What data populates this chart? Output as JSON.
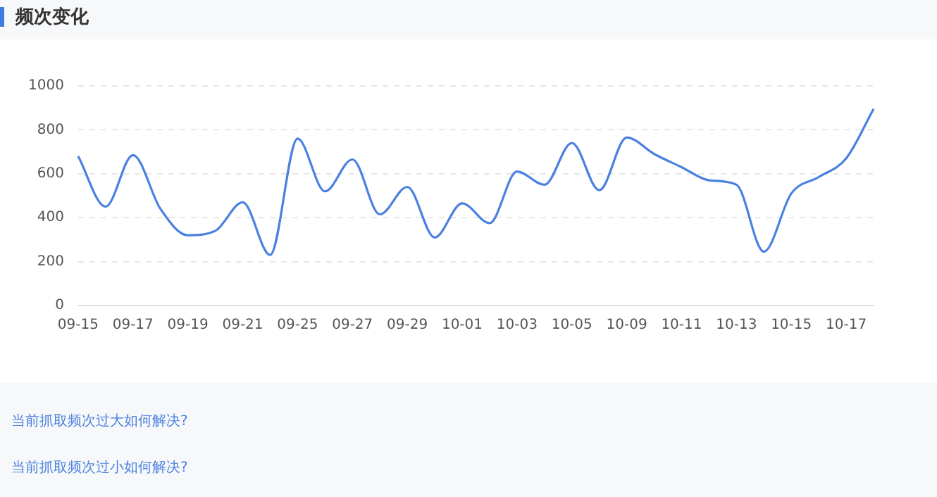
{
  "chart_data": {
    "type": "line",
    "title": "频次变化",
    "categories": [
      "09-15",
      null,
      "09-17",
      null,
      "09-19",
      null,
      "09-21",
      null,
      "09-25",
      null,
      "09-27",
      null,
      "09-29",
      null,
      "10-01",
      null,
      "10-03",
      null,
      "10-05",
      null,
      "10-09",
      null,
      "10-11",
      null,
      "10-13",
      null,
      "10-15",
      null,
      "10-17",
      null
    ],
    "series": [
      {
        "color": "#4a80e0",
        "values": [
          680,
          450,
          685,
          440,
          320,
          340,
          470,
          230,
          760,
          520,
          665,
          415,
          540,
          310,
          465,
          375,
          610,
          550,
          740,
          525,
          765,
          690,
          630,
          570,
          550,
          245,
          510,
          585,
          670,
          895
        ]
      }
    ],
    "ylim": [
      0,
      1000
    ],
    "yticks": [
      0,
      200,
      400,
      600,
      800,
      1000
    ],
    "grid": "y",
    "legend": false,
    "marker": "none",
    "line_style": "solid",
    "annotations": [
      "当前抓取频次过大如何解决?",
      "当前抓取频次过小如何解决?"
    ]
  }
}
